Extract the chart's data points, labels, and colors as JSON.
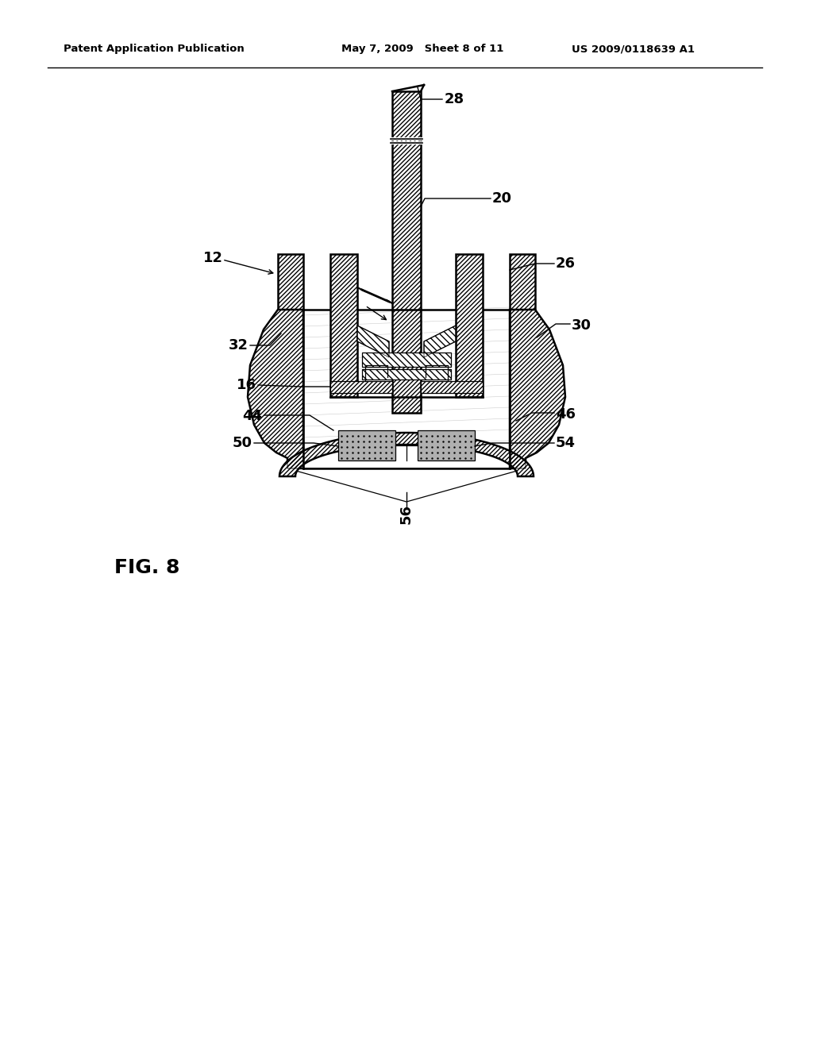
{
  "title_left": "Patent Application Publication",
  "title_mid": "May 7, 2009   Sheet 8 of 11",
  "title_right": "US 2009/0118639 A1",
  "fig_label": "FIG. 8",
  "background": "#ffffff",
  "line_color": "#000000"
}
